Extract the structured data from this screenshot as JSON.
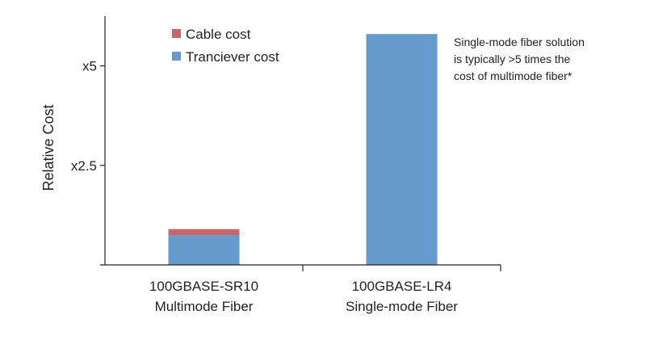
{
  "chart_data": {
    "type": "bar",
    "stacked": true,
    "categories": [
      [
        "100GBASE-SR10",
        "Multimode Fiber"
      ],
      [
        "100GBASE-LR4",
        "Single-mode Fiber"
      ]
    ],
    "series": [
      {
        "name": "Tranciever cost",
        "color": "#6699cc",
        "values": [
          0.75,
          5.8
        ]
      },
      {
        "name": "Cable cost",
        "color": "#cc6666",
        "values": [
          0.15,
          0.0
        ]
      }
    ],
    "ylabel": "Relative Cost",
    "ylim": [
      0,
      6.25
    ],
    "yticks": [
      {
        "value": 2.5,
        "label": "x2.5"
      },
      {
        "value": 5,
        "label": "x5"
      }
    ],
    "legend_position": "top-left",
    "legend_order": [
      "Cable cost",
      "Tranciever cost"
    ],
    "annotation": [
      "Single-mode fiber solution",
      "is typically >5 times the",
      "cost of multimode fiber*"
    ],
    "grid": false
  }
}
